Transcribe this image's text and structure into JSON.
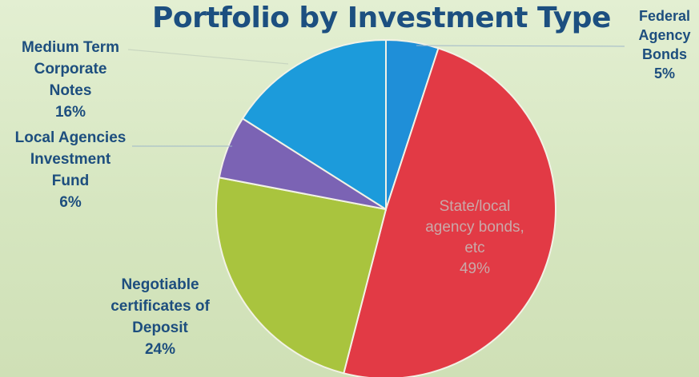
{
  "chart_data": {
    "type": "pie",
    "title": "Portfolio by Investment Type",
    "slices": [
      {
        "label_lines": [
          "Federal",
          "Agency",
          "Bonds"
        ],
        "value": 5,
        "value_label": "5%",
        "color": "#1f8fd8"
      },
      {
        "label_lines": [
          "State/local",
          "agency bonds,",
          "etc"
        ],
        "value": 49,
        "value_label": "49%",
        "color": "#e23a45"
      },
      {
        "label_lines": [
          "Negotiable",
          "certificates of",
          "Deposit"
        ],
        "value": 24,
        "value_label": "24%",
        "color": "#a9c43e"
      },
      {
        "label_lines": [
          "Local Agencies",
          "Investment",
          "Fund"
        ],
        "value": 6,
        "value_label": "6%",
        "color": "#7b63b4"
      },
      {
        "label_lines": [
          "Medium Term",
          "Corporate",
          "Notes"
        ],
        "value": 16,
        "value_label": "16%",
        "color": "#1c9bdb"
      }
    ]
  }
}
